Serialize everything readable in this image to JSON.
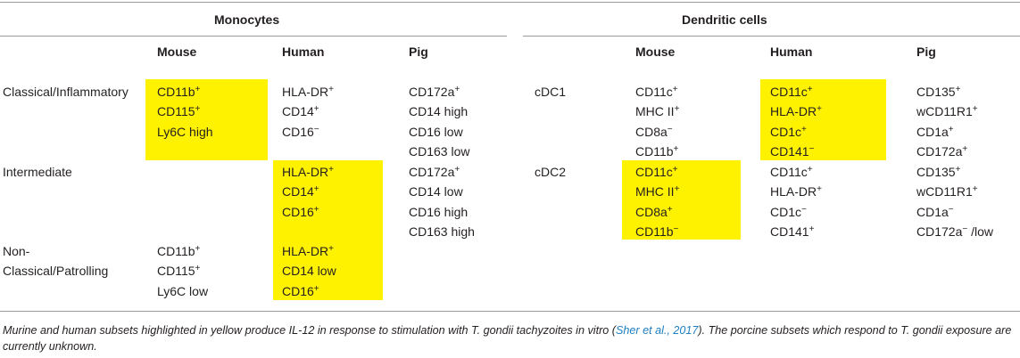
{
  "table": {
    "groups": {
      "monocytes": "Monocytes",
      "dendritic": "Dendritic cells"
    },
    "columns": {
      "mono_mouse": "Mouse",
      "mono_human": "Human",
      "mono_pig": "Pig",
      "dc_mouse": "Mouse",
      "dc_human": "Human",
      "dc_pig": "Pig"
    },
    "rows": [
      {
        "label": [
          "Classical/Inflammatory"
        ],
        "mouse": [
          [
            "CD11b",
            "+"
          ],
          [
            "CD115",
            "+"
          ],
          [
            "Ly6C high",
            ""
          ]
        ],
        "human": [
          [
            "HLA-DR",
            "+"
          ],
          [
            "CD14",
            "+"
          ],
          [
            "CD16",
            "−"
          ]
        ],
        "pig": [
          [
            "CD172a",
            "+"
          ],
          [
            "CD14 high",
            ""
          ],
          [
            "CD16 low",
            ""
          ],
          [
            "CD163 low",
            ""
          ]
        ],
        "dc_label": "cDC1",
        "dc_mouse": [
          [
            "CD11c",
            "+"
          ],
          [
            "MHC II",
            "+"
          ],
          [
            "CD8a",
            "−"
          ],
          [
            "CD11b",
            "+"
          ]
        ],
        "dc_human": [
          [
            "CD11c",
            "+"
          ],
          [
            "HLA-DR",
            "+"
          ],
          [
            "CD1c",
            "+"
          ],
          [
            "CD141",
            "−"
          ]
        ],
        "dc_pig": [
          [
            "CD135",
            "+"
          ],
          [
            "wCD11R1",
            "+"
          ],
          [
            "CD1a",
            "+"
          ],
          [
            "CD172a",
            "+"
          ]
        ]
      },
      {
        "label": [
          "Intermediate"
        ],
        "mouse": [],
        "human": [
          [
            "HLA-DR",
            "+"
          ],
          [
            "CD14",
            "+"
          ],
          [
            "CD16",
            "+"
          ]
        ],
        "pig": [
          [
            "CD172a",
            "+"
          ],
          [
            "CD14 low",
            ""
          ],
          [
            "CD16 high",
            ""
          ],
          [
            "CD163 high",
            ""
          ]
        ],
        "dc_label": "cDC2",
        "dc_mouse": [
          [
            "CD11c",
            "+"
          ],
          [
            "MHC II",
            "+"
          ],
          [
            "CD8a",
            "+"
          ],
          [
            "CD11b",
            "−"
          ]
        ],
        "dc_human": [
          [
            "CD11c",
            "+"
          ],
          [
            "HLA-DR",
            "+"
          ],
          [
            "CD1c",
            "−"
          ],
          [
            "CD141",
            "+"
          ]
        ],
        "dc_pig": [
          [
            "CD135",
            "+"
          ],
          [
            "wCD11R1",
            "+"
          ],
          [
            "CD1a",
            "−"
          ],
          [
            "CD172a",
            "− /low"
          ]
        ]
      },
      {
        "label": [
          "Non-",
          "Classical/Patrolling"
        ],
        "mouse": [
          [
            "CD11b",
            "+"
          ],
          [
            "CD115",
            "+"
          ],
          [
            "Ly6C low",
            ""
          ]
        ],
        "human": [
          [
            "HLA-DR",
            "+"
          ],
          [
            "CD14 low",
            ""
          ],
          [
            "CD16",
            "+"
          ]
        ],
        "pig": [],
        "dc_label": "",
        "dc_mouse": [],
        "dc_human": [],
        "dc_pig": []
      }
    ],
    "highlight_color": "#fff200"
  },
  "caption": {
    "part1": "Murine and human subsets highlighted in yellow produce IL-12 in response to stimulation with T. gondii tachyzoites in vitro (",
    "ref": "Sher et al., 2017",
    "part2": "). The porcine subsets which respond to T. gondii exposure are currently unknown."
  }
}
